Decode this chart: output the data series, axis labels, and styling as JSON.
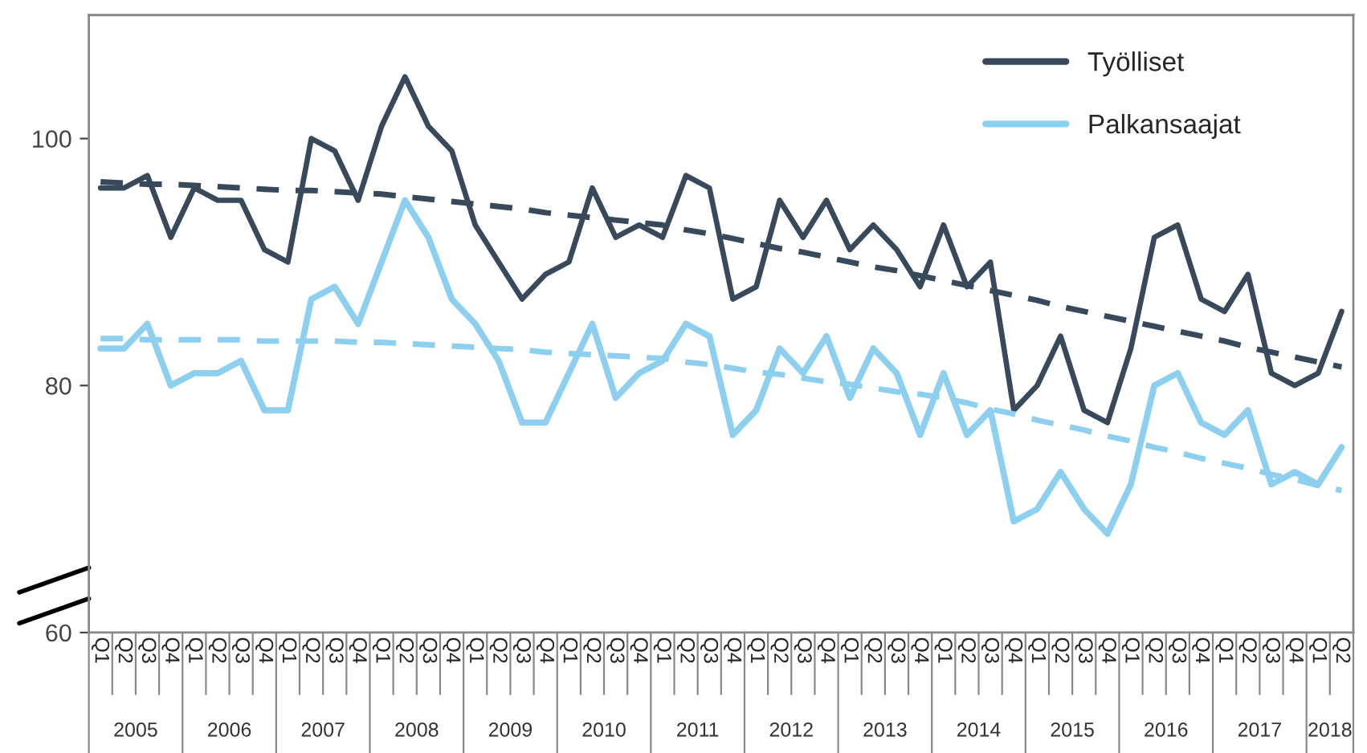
{
  "chart_data": {
    "type": "line",
    "categories": [
      "Q1",
      "Q2",
      "Q3",
      "Q4",
      "Q1",
      "Q2",
      "Q3",
      "Q4",
      "Q1",
      "Q2",
      "Q3",
      "Q4",
      "Q1",
      "Q2",
      "Q3",
      "Q4",
      "Q1",
      "Q2",
      "Q3",
      "Q4",
      "Q1",
      "Q2",
      "Q3",
      "Q4",
      "Q1",
      "Q2",
      "Q3",
      "Q4",
      "Q1",
      "Q2",
      "Q3",
      "Q4",
      "Q1",
      "Q2",
      "Q3",
      "Q4",
      "Q1",
      "Q2",
      "Q3",
      "Q4",
      "Q1",
      "Q2",
      "Q3",
      "Q4",
      "Q1",
      "Q2",
      "Q3",
      "Q4",
      "Q1",
      "Q2",
      "Q3",
      "Q4",
      "Q1",
      "Q2"
    ],
    "annotations": [
      "2005",
      "2006",
      "2007",
      "2008",
      "2009",
      "2010",
      "2011",
      "2012",
      "2013",
      "2014",
      "2015",
      "2016",
      "2017",
      "2018"
    ],
    "series": [
      {
        "name": "Työlliset",
        "color": "#37495a",
        "line_style": "solid",
        "values": [
          96,
          96,
          97,
          92,
          96,
          95,
          95,
          91,
          90,
          100,
          99,
          95,
          101,
          105,
          101,
          99,
          93,
          90,
          87,
          89,
          90,
          96,
          92,
          93,
          92,
          97,
          96,
          87,
          88,
          95,
          92,
          95,
          91,
          93,
          91,
          88,
          93,
          88,
          90,
          78,
          80,
          84,
          78,
          77,
          83,
          92,
          93,
          87,
          86,
          89,
          81,
          80,
          81,
          86
        ]
      },
      {
        "name": "Palkansaajat",
        "color": "#8dcfee",
        "line_style": "solid",
        "values": [
          83,
          83,
          85,
          80,
          81,
          81,
          82,
          78,
          78,
          87,
          88,
          85,
          90,
          95,
          92,
          87,
          85,
          82,
          77,
          77,
          81,
          85,
          79,
          81,
          82,
          85,
          84,
          76,
          78,
          83,
          81,
          84,
          79,
          83,
          81,
          76,
          81,
          76,
          78,
          69,
          70,
          73,
          70,
          68,
          72,
          80,
          81,
          77,
          76,
          78,
          72,
          73,
          72,
          75
        ]
      },
      {
        "color": "#37495a",
        "line_style": "dashed",
        "values": [
          96.5,
          96.4,
          96.3,
          96.3,
          96.2,
          96.1,
          96.0,
          95.9,
          95.8,
          95.8,
          95.7,
          95.6,
          95.5,
          95.3,
          95.1,
          94.9,
          94.7,
          94.5,
          94.3,
          94.0,
          93.8,
          93.6,
          93.4,
          93.2,
          93.0,
          92.6,
          92.3,
          91.9,
          91.5,
          91.1,
          90.8,
          90.4,
          90.0,
          89.6,
          89.3,
          88.9,
          88.5,
          88.1,
          87.7,
          87.3,
          86.9,
          86.4,
          86.0,
          85.6,
          85.2,
          84.8,
          84.4,
          84.0,
          83.6,
          83.1,
          82.7,
          82.3,
          81.9,
          81.5
        ]
      },
      {
        "color": "#8dcfee",
        "line_style": "dashed",
        "values": [
          83.8,
          83.8,
          83.7,
          83.7,
          83.7,
          83.7,
          83.7,
          83.6,
          83.6,
          83.6,
          83.6,
          83.5,
          83.5,
          83.4,
          83.3,
          83.2,
          83.1,
          83.0,
          82.9,
          82.7,
          82.6,
          82.5,
          82.4,
          82.3,
          82.2,
          81.9,
          81.7,
          81.4,
          81.1,
          80.9,
          80.6,
          80.3,
          80.1,
          79.8,
          79.5,
          79.3,
          79.0,
          78.6,
          78.1,
          77.7,
          77.2,
          76.8,
          76.4,
          75.9,
          75.5,
          75.0,
          74.6,
          74.1,
          73.7,
          73.3,
          72.8,
          72.4,
          71.9,
          71.5
        ]
      }
    ],
    "ylim": [
      60,
      110
    ],
    "yticks": [
      60,
      80,
      100
    ],
    "grid": false,
    "legend": "top right",
    "marker": "none"
  }
}
